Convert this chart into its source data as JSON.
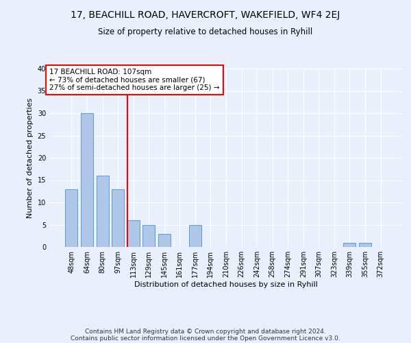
{
  "title1": "17, BEACHILL ROAD, HAVERCROFT, WAKEFIELD, WF4 2EJ",
  "title2": "Size of property relative to detached houses in Ryhill",
  "xlabel": "Distribution of detached houses by size in Ryhill",
  "ylabel": "Number of detached properties",
  "categories": [
    "48sqm",
    "64sqm",
    "80sqm",
    "97sqm",
    "113sqm",
    "129sqm",
    "145sqm",
    "161sqm",
    "177sqm",
    "194sqm",
    "210sqm",
    "226sqm",
    "242sqm",
    "258sqm",
    "274sqm",
    "291sqm",
    "307sqm",
    "323sqm",
    "339sqm",
    "355sqm",
    "372sqm"
  ],
  "values": [
    13,
    30,
    16,
    13,
    6,
    5,
    3,
    0,
    5,
    0,
    0,
    0,
    0,
    0,
    0,
    0,
    0,
    0,
    1,
    1,
    0
  ],
  "bar_color": "#aec6e8",
  "bar_edge_color": "#5b9bd5",
  "red_line_index": 4,
  "annotation_line1": "17 BEACHILL ROAD: 107sqm",
  "annotation_line2": "← 73% of detached houses are smaller (67)",
  "annotation_line3": "27% of semi-detached houses are larger (25) →",
  "annotation_box_color": "white",
  "annotation_border_color": "red",
  "red_line_color": "red",
  "ylim": [
    0,
    40
  ],
  "footer_line1": "Contains HM Land Registry data © Crown copyright and database right 2024.",
  "footer_line2": "Contains public sector information licensed under the Open Government Licence v3.0.",
  "bg_color": "#eaf0fb",
  "plot_bg_color": "#eaf0fb"
}
